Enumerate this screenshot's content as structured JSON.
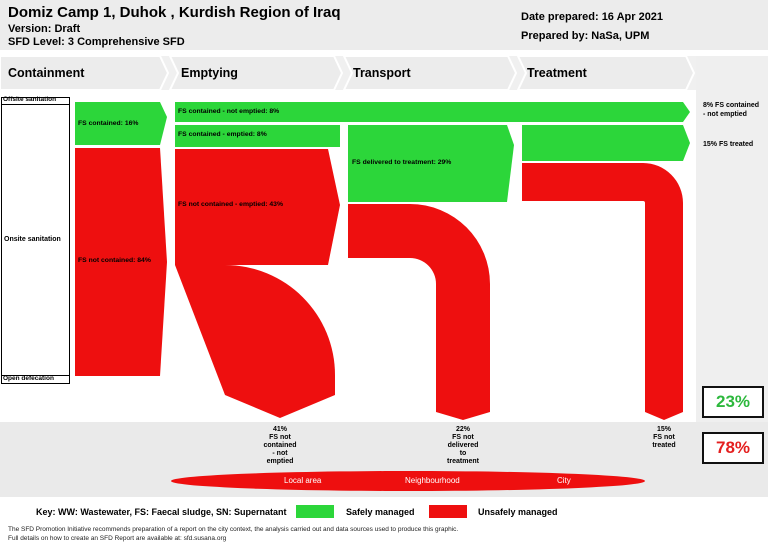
{
  "header": {
    "title": "Domiz Camp 1, Duhok , Kurdish Region of Iraq",
    "version": "Version: Draft",
    "sfd_level": "SFD Level: 3 Comprehensive SFD",
    "date_prepared": "Date prepared: 16 Apr 2021",
    "prepared_by": "Prepared by: NaSa, UPM"
  },
  "stages": [
    "Containment",
    "Emptying",
    "Transport",
    "Treatment"
  ],
  "sources": {
    "offsite": "Offsite sanitation",
    "onsite": "Onsite sanitation",
    "open_defecation": "Open defecation"
  },
  "flows": {
    "contained_not_emptied": "FS contained - not emptied: 8%",
    "contained": "FS contained: 16%",
    "contained_emptied": "FS contained - emptied: 8%",
    "delivered_to_treatment": "FS delivered to treatment: 29%",
    "not_contained_emptied": "FS not contained - emptied: 43%",
    "not_contained": "FS not contained: 84%"
  },
  "right_labels": {
    "not_emptied": "8% FS contained - not emptied",
    "treated": "15% FS treated"
  },
  "totals": {
    "safe": "23%",
    "unsafe": "78%",
    "safe_color": "#2db83d",
    "unsafe_color": "#e41f1f"
  },
  "outputs": {
    "not_contained_not_emptied": [
      "41%",
      "FS not",
      "contained",
      "- not",
      "emptied"
    ],
    "not_delivered": [
      "22%",
      "FS not",
      "delivered",
      "to",
      "treatment"
    ],
    "not_treated": [
      "15%",
      "FS not",
      "treated"
    ]
  },
  "areas": [
    "Local area",
    "Neighbourhood",
    "City"
  ],
  "key": {
    "text": "Key: WW: Wastewater, FS: Faecal sludge, SN: Supernatant",
    "safe": "Safely managed",
    "unsafe": "Unsafely managed"
  },
  "footnotes": [
    "The SFD Promotion Initiative recommends preparation of a report on the city context, the analysis carried out and data sources used to produce this graphic.",
    "Full details on how to create an SFD Report are available at: sfd.susana.org"
  ],
  "colors": {
    "green": "#2cd63a",
    "red": "#ee0f0f"
  }
}
